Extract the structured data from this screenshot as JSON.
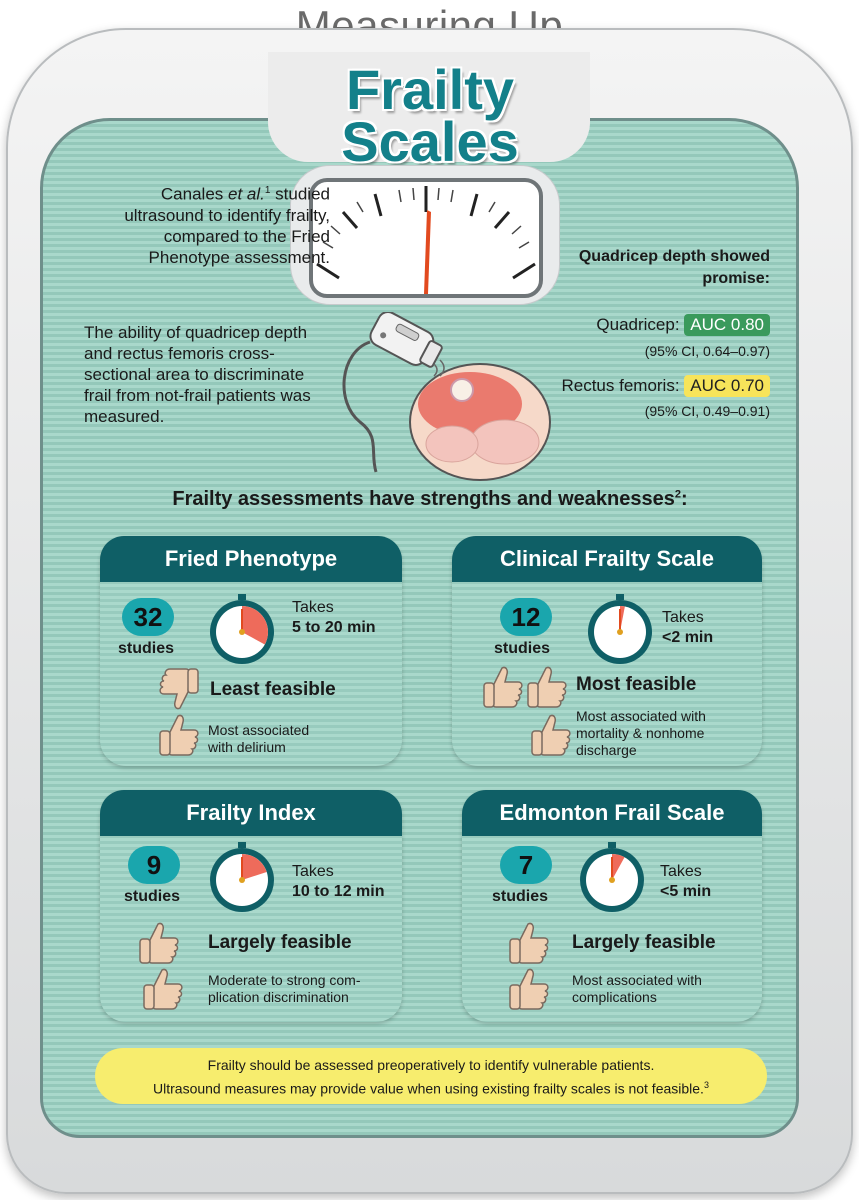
{
  "header": {
    "top_title": "Measuring Up",
    "main_title_line1": "Frailty",
    "main_title_line2": "Scales"
  },
  "intro": {
    "author": "Canales",
    "author_suffix": " et al.",
    "ref": "1",
    "text_rest": "studied ultrasound to identify frailty, compared to the Fried Phenotype assessment.",
    "ability": "The ability of quadricep depth and rectus femoris cross-sectional area to discriminate frail from not-frail patients was measured."
  },
  "results": {
    "heading": "Quadricep depth showed promise:",
    "quad_label": "Quadricep:",
    "quad_auc": "AUC 0.80",
    "quad_ci": "(95% CI, 0.64–0.97)",
    "rect_label": "Rectus femoris:",
    "rect_auc": "AUC 0.70",
    "rect_ci": "(95% CI, 0.49–0.91)",
    "quad_color": "#3a9a5c",
    "rect_color": "#f7e45a"
  },
  "section_heading": "Frailty assessments have strengths and weaknesses",
  "section_ref": "2",
  "cards": [
    {
      "title": "Fried Phenotype",
      "count": "32",
      "studies": "studies",
      "takes": "Takes",
      "time": "5 to 20 min",
      "feasibility": "Least feasible",
      "assoc_line1": "Most associated",
      "assoc_line2": "with delirium",
      "clock_fraction": 0.33
    },
    {
      "title": "Clinical Frailty Scale",
      "count": "12",
      "studies": "studies",
      "takes": "Takes",
      "time": "<2 min",
      "feasibility": "Most feasible",
      "assoc_line1": "Most associated with",
      "assoc_line2": "mortality & nonhome",
      "assoc_line3": "discharge",
      "clock_fraction": 0.03
    },
    {
      "title": "Frailty Index",
      "count": "9",
      "studies": "studies",
      "takes": "Takes",
      "time": "10 to 12 min",
      "feasibility": "Largely feasible",
      "assoc_line1": "Moderate to strong com-",
      "assoc_line2": "plication discrimination",
      "clock_fraction": 0.2
    },
    {
      "title": "Edmonton Frail Scale",
      "count": "7",
      "studies": "studies",
      "takes": "Takes",
      "time": "<5 min",
      "feasibility": "Largely feasible",
      "assoc_line1": "Most associated with",
      "assoc_line2": "complications",
      "clock_fraction": 0.08
    }
  ],
  "footer": {
    "line1": "Frailty should be assessed preoperatively to identify vulnerable patients.",
    "line2": "Ultrasound measures may provide value when using existing frailty scales is not feasible.",
    "ref": "3"
  },
  "colors": {
    "teal_dark": "#0f5f66",
    "teal_badge": "#1aa6ad",
    "title_teal": "#13808a",
    "clock_red": "#ee6b5b",
    "footer_yellow": "#f7ed6e"
  }
}
